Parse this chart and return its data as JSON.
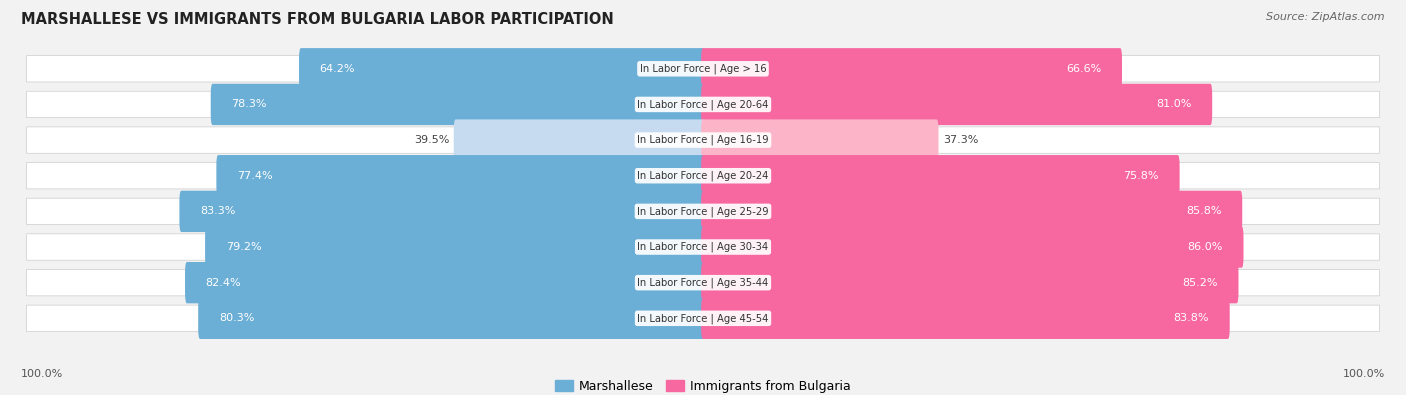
{
  "title": "MARSHALLESE VS IMMIGRANTS FROM BULGARIA LABOR PARTICIPATION",
  "source": "Source: ZipAtlas.com",
  "categories": [
    "In Labor Force | Age > 16",
    "In Labor Force | Age 20-64",
    "In Labor Force | Age 16-19",
    "In Labor Force | Age 20-24",
    "In Labor Force | Age 25-29",
    "In Labor Force | Age 30-34",
    "In Labor Force | Age 35-44",
    "In Labor Force | Age 45-54"
  ],
  "marshallese_values": [
    64.2,
    78.3,
    39.5,
    77.4,
    83.3,
    79.2,
    82.4,
    80.3
  ],
  "bulgaria_values": [
    66.6,
    81.0,
    37.3,
    75.8,
    85.8,
    86.0,
    85.2,
    83.8
  ],
  "marshallese_color": "#6baed6",
  "marshallese_color_light": "#c6dbef",
  "bulgaria_color": "#f768a1",
  "bulgaria_color_light": "#fbb4c8",
  "background_color": "#f2f2f2",
  "row_bg_color": "#ffffff",
  "legend_marshallese": "Marshallese",
  "legend_bulgaria": "Immigrants from Bulgaria",
  "bottom_left_label": "100.0%",
  "bottom_right_label": "100.0%"
}
